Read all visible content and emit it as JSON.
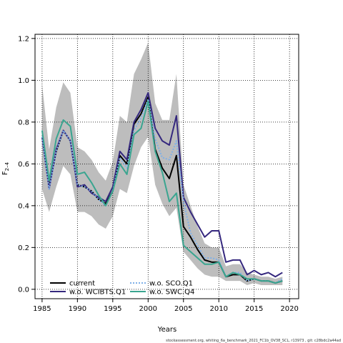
{
  "chart_data": {
    "type": "line",
    "title": "",
    "xlabel": "Years",
    "ylabel_main": "F",
    "ylabel_sub": "2–4",
    "xlim": [
      1984,
      2021.3
    ],
    "ylim": [
      -0.045,
      1.22
    ],
    "x_ticks": [
      1985,
      1990,
      1995,
      2000,
      2005,
      2010,
      2015,
      2020
    ],
    "y_ticks": [
      0.0,
      0.2,
      0.4,
      0.6,
      0.8,
      1.0,
      1.2
    ],
    "y_tick_labels": [
      "0.0",
      "0.2",
      "0.4",
      "0.6",
      "0.8",
      "1.0",
      "1.2"
    ],
    "grid": true,
    "legend_position": "bottom-left",
    "x": [
      1985,
      1986,
      1987,
      1988,
      1989,
      1990,
      1991,
      1992,
      1993,
      1994,
      1995,
      1996,
      1997,
      1998,
      1999,
      2000,
      2001,
      2002,
      2003,
      2004,
      2005,
      2006,
      2007,
      2008,
      2009,
      2010,
      2011,
      2012,
      2013,
      2014,
      2015,
      2016,
      2017,
      2018,
      2019
    ],
    "band": {
      "upper": [
        0.98,
        0.67,
        0.87,
        0.99,
        0.94,
        0.68,
        0.66,
        0.62,
        0.56,
        0.52,
        0.61,
        0.83,
        0.8,
        1.03,
        1.1,
        1.18,
        0.89,
        0.81,
        0.81,
        1.03,
        0.5,
        0.4,
        0.3,
        0.22,
        0.2,
        0.2,
        0.11,
        0.12,
        0.12,
        0.08,
        0.07,
        0.06,
        0.06,
        0.05,
        0.06
      ],
      "lower": [
        0.48,
        0.37,
        0.49,
        0.59,
        0.55,
        0.37,
        0.37,
        0.35,
        0.31,
        0.29,
        0.35,
        0.48,
        0.46,
        0.59,
        0.68,
        0.73,
        0.5,
        0.41,
        0.35,
        0.39,
        0.18,
        0.14,
        0.1,
        0.07,
        0.06,
        0.06,
        0.04,
        0.04,
        0.04,
        0.02,
        0.03,
        0.02,
        0.02,
        0.02,
        0.02
      ]
    },
    "series": [
      {
        "name": "current",
        "color": "#000000",
        "dash": "solid",
        "values": [
          0.73,
          0.49,
          0.66,
          0.76,
          0.71,
          0.5,
          0.49,
          0.47,
          0.43,
          0.41,
          0.47,
          0.64,
          0.6,
          0.79,
          0.84,
          0.92,
          0.67,
          0.58,
          0.53,
          0.64,
          0.3,
          0.25,
          0.19,
          0.14,
          0.13,
          0.13,
          0.06,
          0.07,
          0.07,
          0.04,
          0.05,
          0.04,
          0.04,
          0.03,
          0.04
        ]
      },
      {
        "name": "w.o. WCIBTS.Q1",
        "color": "#35287e",
        "dash": "solid",
        "values": [
          0.73,
          0.48,
          0.67,
          0.76,
          0.71,
          0.49,
          0.5,
          0.46,
          0.44,
          0.42,
          0.49,
          0.66,
          0.62,
          0.8,
          0.86,
          0.94,
          0.77,
          0.71,
          0.69,
          0.83,
          0.44,
          0.37,
          0.31,
          0.25,
          0.28,
          0.28,
          0.13,
          0.14,
          0.14,
          0.07,
          0.09,
          0.07,
          0.08,
          0.06,
          0.08
        ]
      },
      {
        "name": "w.o. SCO.Q1",
        "color": "#7fb0e8",
        "dash": "dotted",
        "values": [
          0.73,
          0.48,
          0.66,
          0.76,
          0.71,
          0.5,
          0.49,
          0.47,
          0.43,
          0.4,
          0.47,
          0.63,
          0.58,
          0.76,
          0.82,
          0.91,
          0.72,
          0.63,
          0.62,
          0.71,
          0.42,
          0.27,
          0.21,
          0.15,
          0.15,
          0.14,
          0.06,
          0.08,
          0.08,
          0.04,
          0.05,
          0.04,
          0.04,
          0.03,
          0.05
        ]
      },
      {
        "name": "w.o. SWC.Q4",
        "color": "#3aa590",
        "dash": "solid",
        "values": [
          0.76,
          0.52,
          0.72,
          0.81,
          0.78,
          0.55,
          0.56,
          0.51,
          0.45,
          0.4,
          0.47,
          0.6,
          0.55,
          0.74,
          0.77,
          0.9,
          0.66,
          0.56,
          0.42,
          0.46,
          0.21,
          0.18,
          0.15,
          0.12,
          0.12,
          0.13,
          0.06,
          0.08,
          0.07,
          0.05,
          0.05,
          0.04,
          0.04,
          0.03,
          0.04
        ]
      }
    ],
    "legend": {
      "entries": [
        {
          "label": "current",
          "color": "#000000",
          "dash": "solid"
        },
        {
          "label": "w.o. WCIBTS.Q1",
          "color": "#35287e",
          "dash": "solid"
        },
        {
          "label": "w.o. SCO.Q1",
          "color": "#7fb0e8",
          "dash": "dotted"
        },
        {
          "label": "w.o. SWC.Q4",
          "color": "#3aa590",
          "dash": "solid"
        }
      ]
    },
    "band_color": "#bdbdbd",
    "footnote": "stockassessment.org,  whiting_6a_benchmark_2021_FC1b_OV38_SCL, r13973 ,  git: c28bdc2a44ad"
  }
}
